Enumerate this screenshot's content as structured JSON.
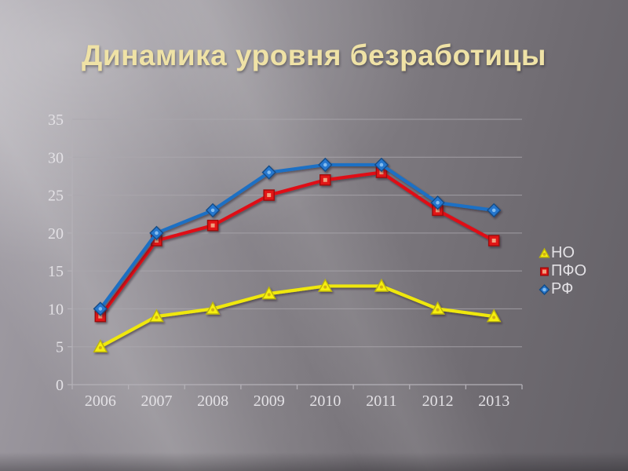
{
  "slide_title": "Динамика уровня безработицы",
  "colors": {
    "title": "#EFE2A6",
    "text": "#E3E1E5",
    "grid": "#ABA8AE",
    "axis": "#B4B1B7"
  },
  "chart_data": {
    "type": "line",
    "title": "Динамика уровня безработицы",
    "xlabel": "",
    "ylabel": "",
    "categories": [
      "2006",
      "2007",
      "2008",
      "2009",
      "2010",
      "2011",
      "2012",
      "2013"
    ],
    "series": [
      {
        "key": "no",
        "name": "НО",
        "marker": "triangle",
        "line_color": "#EFE70B",
        "marker_fill": "#F6EF0E",
        "marker_stroke": "#BBB409",
        "marker_center": "#C9A21B",
        "values": [
          5,
          9,
          10,
          12,
          13,
          13,
          10,
          9
        ]
      },
      {
        "key": "pfo",
        "name": "ПФО",
        "marker": "square",
        "line_color": "#DF1113",
        "marker_fill": "#E21214",
        "marker_stroke": "#9E0B0C",
        "marker_center": "#F2B089",
        "values": [
          9,
          19,
          21,
          25,
          27,
          28,
          23,
          19
        ]
      },
      {
        "key": "rf",
        "name": "РФ",
        "marker": "diamond",
        "line_color": "#1F6FC4",
        "marker_fill": "#2677CE",
        "marker_stroke": "#124B85",
        "marker_center": "#8FC3F2",
        "values": [
          10,
          20,
          23,
          28,
          29,
          29,
          24,
          23
        ]
      }
    ],
    "y_ticks": [
      0,
      5,
      10,
      15,
      20,
      25,
      30,
      35
    ],
    "ylim": [
      0,
      35
    ],
    "grid": "horizontal",
    "legend_position": "right"
  }
}
